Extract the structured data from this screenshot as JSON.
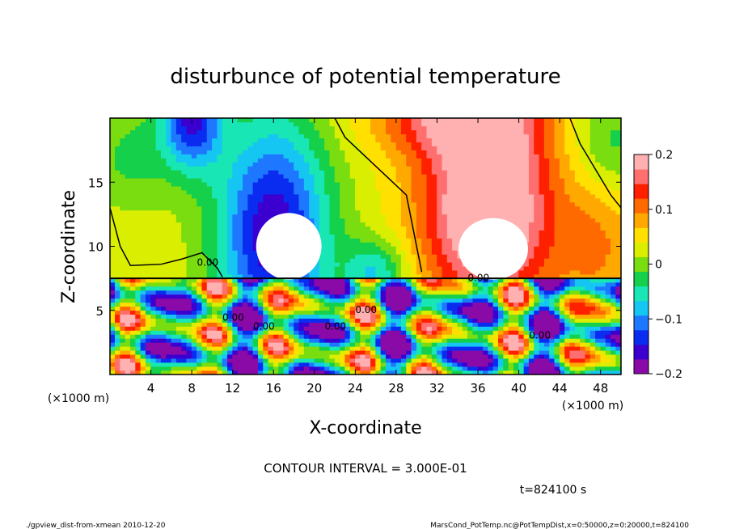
{
  "chart_data": {
    "type": "heatmap",
    "title": "disturbunce of potential temperature",
    "xlabel": "X-coordinate",
    "ylabel": "Z-coordinate",
    "x_unit": "(×1000 m)",
    "y_unit": "(×1000 m)",
    "xlim": [
      0,
      50
    ],
    "ylim": [
      0,
      20
    ],
    "x_ticks": [
      "4",
      "8",
      "12",
      "16",
      "20",
      "24",
      "28",
      "32",
      "36",
      "40",
      "44",
      "48"
    ],
    "y_ticks": [
      "5",
      "10",
      "15"
    ],
    "colorbar": {
      "range": [
        -0.2,
        0.2
      ],
      "tick_labels": [
        "0.2",
        "0.1",
        "0",
        "-0.1",
        "-0.2"
      ],
      "colors": [
        "#8a0aa8",
        "#3b00d0",
        "#0a2cf0",
        "#1e78ff",
        "#16c6f2",
        "#18e6b4",
        "#14d04a",
        "#7add10",
        "#d9ee00",
        "#ffe000",
        "#ffa800",
        "#ff6a00",
        "#ff2000",
        "#ff6f6f",
        "#ffb0b0"
      ]
    },
    "contour_labels": [
      "0.00",
      "0.00",
      "0.00",
      "0.00",
      "0.00",
      "0.00",
      "0.00"
    ],
    "contour_interval": "CONTOUR INTERVAL = 3.000E-01",
    "time": "t=824100 s"
  },
  "footer": {
    "left": "./gpview_dist-from-xmean  2010-12-20",
    "right": "MarsCond_PotTemp.nc@PotTempDist,x=0:50000,z=0:20000,t=824100"
  }
}
